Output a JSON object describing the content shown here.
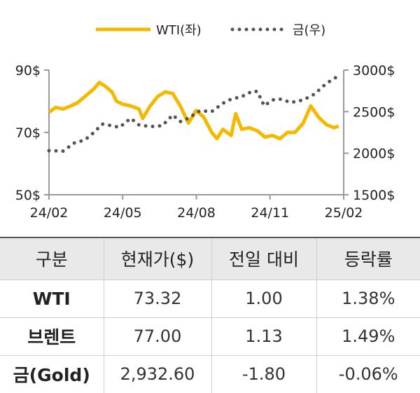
{
  "chart_data": {
    "type": "line",
    "legend_position": "top-center",
    "grid": false,
    "x_tick_labels": [
      "24/02",
      "24/05",
      "24/08",
      "24/11",
      "25/02"
    ],
    "x_range": [
      "2024-02-01",
      "2025-02-28"
    ],
    "y_left": {
      "ylim": [
        50,
        90
      ],
      "tick_values": [
        50,
        70,
        90
      ],
      "tick_labels": [
        "50$",
        "70$",
        "90$"
      ]
    },
    "y_right": {
      "ylim": [
        1500,
        3000
      ],
      "tick_values": [
        1500,
        2000,
        2500,
        3000
      ],
      "tick_labels": [
        "1500$",
        "2000$",
        "2500$",
        "3000$"
      ]
    },
    "series": [
      {
        "name": "WTI(좌)",
        "axis": "left",
        "style": "solid",
        "color": "#f5b800",
        "points": [
          [
            "2024-02-01",
            76.5
          ],
          [
            "2024-02-10",
            78
          ],
          [
            "2024-02-20",
            77.5
          ],
          [
            "2024-03-01",
            78.5
          ],
          [
            "2024-03-10",
            79.5
          ],
          [
            "2024-03-20",
            81.5
          ],
          [
            "2024-04-01",
            84
          ],
          [
            "2024-04-08",
            86
          ],
          [
            "2024-04-15",
            85
          ],
          [
            "2024-04-25",
            83
          ],
          [
            "2024-05-01",
            80
          ],
          [
            "2024-05-10",
            79
          ],
          [
            "2024-05-20",
            78.5
          ],
          [
            "2024-05-31",
            77.5
          ],
          [
            "2024-06-05",
            74.5
          ],
          [
            "2024-06-15",
            78.5
          ],
          [
            "2024-06-25",
            81.5
          ],
          [
            "2024-07-05",
            83
          ],
          [
            "2024-07-15",
            82.5
          ],
          [
            "2024-07-25",
            78.5
          ],
          [
            "2024-08-05",
            73
          ],
          [
            "2024-08-15",
            77
          ],
          [
            "2024-08-25",
            75
          ],
          [
            "2024-09-05",
            70
          ],
          [
            "2024-09-12",
            68
          ],
          [
            "2024-09-20",
            71
          ],
          [
            "2024-10-01",
            69
          ],
          [
            "2024-10-07",
            76
          ],
          [
            "2024-10-15",
            71
          ],
          [
            "2024-10-25",
            71.5
          ],
          [
            "2024-11-05",
            70.5
          ],
          [
            "2024-11-15",
            68.5
          ],
          [
            "2024-11-25",
            69
          ],
          [
            "2024-12-05",
            68
          ],
          [
            "2024-12-15",
            70
          ],
          [
            "2024-12-25",
            70
          ],
          [
            "2025-01-05",
            73
          ],
          [
            "2025-01-15",
            78.5
          ],
          [
            "2025-01-25",
            75
          ],
          [
            "2025-02-05",
            72.5
          ],
          [
            "2025-02-15",
            71.5
          ],
          [
            "2025-02-21",
            72
          ]
        ]
      },
      {
        "name": "금(우)",
        "axis": "right",
        "style": "dotted",
        "color": "#5a524c",
        "points": [
          [
            "2024-02-01",
            2030
          ],
          [
            "2024-02-20",
            2025
          ],
          [
            "2024-03-05",
            2120
          ],
          [
            "2024-03-20",
            2160
          ],
          [
            "2024-04-01",
            2250
          ],
          [
            "2024-04-12",
            2350
          ],
          [
            "2024-04-25",
            2330
          ],
          [
            "2024-05-05",
            2310
          ],
          [
            "2024-05-20",
            2420
          ],
          [
            "2024-05-31",
            2340
          ],
          [
            "2024-06-15",
            2320
          ],
          [
            "2024-07-01",
            2330
          ],
          [
            "2024-07-15",
            2460
          ],
          [
            "2024-07-25",
            2380
          ],
          [
            "2024-08-05",
            2420
          ],
          [
            "2024-08-20",
            2510
          ],
          [
            "2024-09-05",
            2500
          ],
          [
            "2024-09-20",
            2600
          ],
          [
            "2024-10-01",
            2650
          ],
          [
            "2024-10-15",
            2680
          ],
          [
            "2024-10-30",
            2750
          ],
          [
            "2024-11-05",
            2740
          ],
          [
            "2024-11-14",
            2570
          ],
          [
            "2024-11-25",
            2640
          ],
          [
            "2024-12-05",
            2650
          ],
          [
            "2024-12-20",
            2610
          ],
          [
            "2025-01-05",
            2640
          ],
          [
            "2025-01-20",
            2710
          ],
          [
            "2025-02-05",
            2840
          ],
          [
            "2025-02-21",
            2930
          ]
        ]
      }
    ]
  },
  "table": {
    "headers": [
      "구분",
      "현재가($)",
      "전일 대비",
      "등락률"
    ],
    "rows": [
      {
        "name": "WTI",
        "price": "73.32",
        "change": "1.00",
        "rate": "1.38%"
      },
      {
        "name": "브렌트",
        "price": "77.00",
        "change": "1.13",
        "rate": "1.49%"
      },
      {
        "name": "금(Gold)",
        "price": "2,932.60",
        "change": "-1.80",
        "rate": "-0.06%"
      }
    ]
  }
}
